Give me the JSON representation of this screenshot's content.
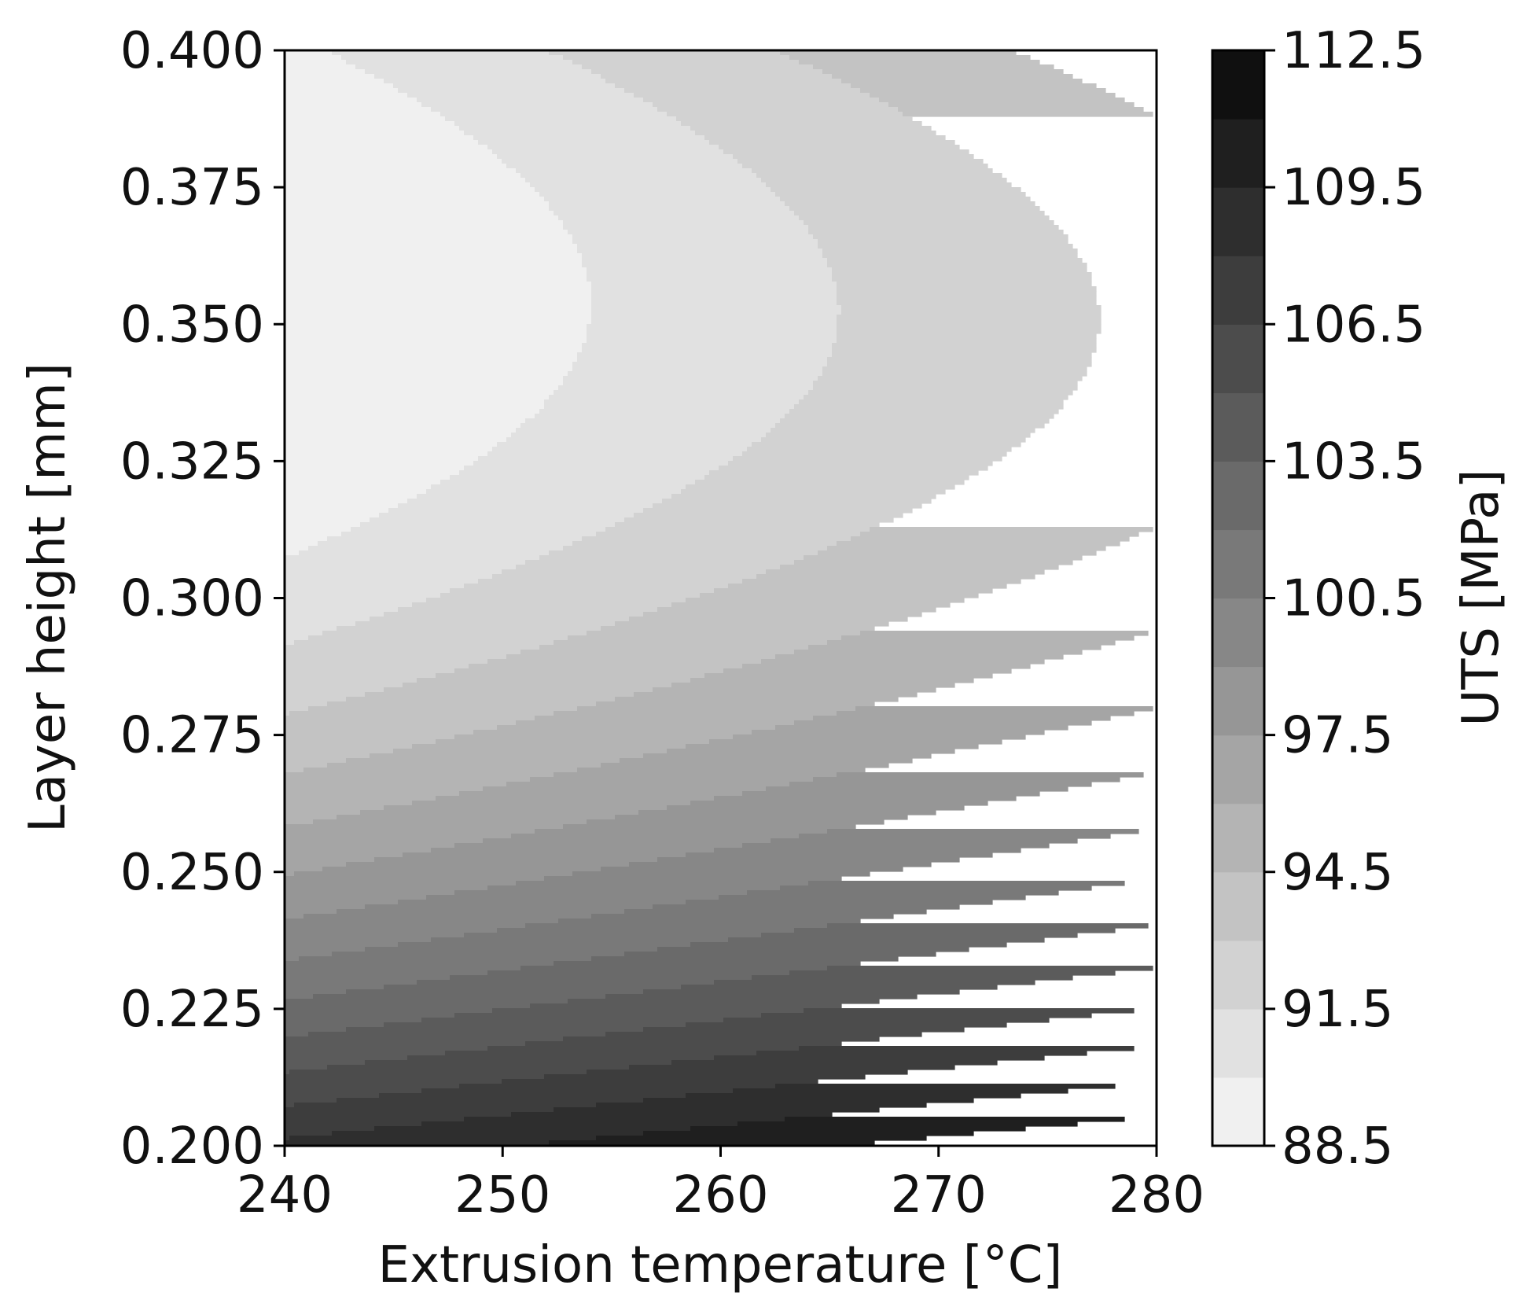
{
  "chart_data": {
    "type": "heatmap",
    "subtype": "filled-contour",
    "colormap": "grayscale, light for low values, dark for high values",
    "xlabel": "Extrusion temperature [°C]",
    "ylabel": "Layer height  [mm]",
    "colorbar_label": "UTS [MPa]",
    "xlim": [
      240,
      280
    ],
    "ylim": [
      0.2,
      0.4
    ],
    "x_ticks": [
      "240",
      "250",
      "260",
      "270",
      "280"
    ],
    "y_ticks": [
      "0.200",
      "0.225",
      "0.250",
      "0.275",
      "0.300",
      "0.325",
      "0.350",
      "0.375",
      "0.400"
    ],
    "colorbar_range": [
      88.5,
      112.5
    ],
    "colorbar_step": 1.5,
    "colorbar_ticks": [
      "88.5",
      "91.5",
      "94.5",
      "97.5",
      "100.5",
      "103.5",
      "106.5",
      "109.5",
      "112.5"
    ],
    "grid": false,
    "surface_samples": [
      {
        "x": 240,
        "y": 0.35,
        "uts": 88.6
      },
      {
        "x": 240,
        "y": 0.4,
        "uts": 89.6
      },
      {
        "x": 240,
        "y": 0.3,
        "uts": 90.2
      },
      {
        "x": 240,
        "y": 0.25,
        "uts": 97.0
      },
      {
        "x": 240,
        "y": 0.2,
        "uts": 108.8
      },
      {
        "x": 260,
        "y": 0.35,
        "uts": 91.0
      },
      {
        "x": 260,
        "y": 0.25,
        "uts": 99.5
      },
      {
        "x": 280,
        "y": 0.35,
        "uts": 93.5
      },
      {
        "x": 280,
        "y": 0.4,
        "uts": 95.1
      },
      {
        "x": 280,
        "y": 0.3,
        "uts": 95.6
      },
      {
        "x": 280,
        "y": 0.25,
        "uts": 101.9
      },
      {
        "x": 280,
        "y": 0.2,
        "uts": 112.2
      }
    ]
  }
}
